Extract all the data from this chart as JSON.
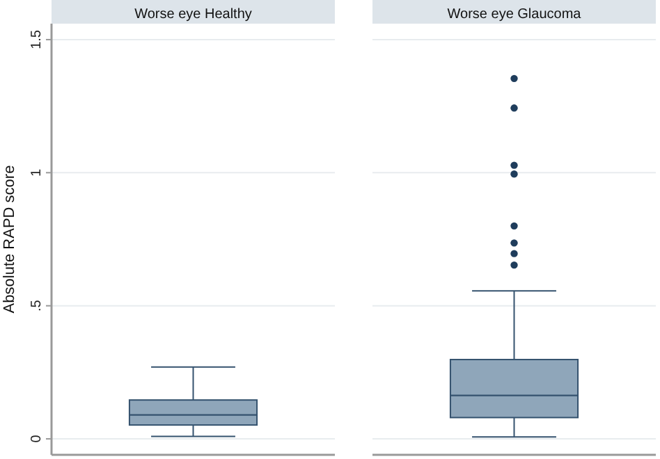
{
  "chart_data": {
    "type": "box",
    "ylabel": "Absolute RAPD score",
    "categories": [
      "Worse eye Healthy",
      "Worse eye Glaucoma"
    ],
    "color": "#8fa6ba",
    "ylim": [
      -0.06,
      1.56
    ],
    "yticks": [
      0,
      {
        "value": 0.5,
        "label": ".5"
      },
      1,
      1.5
    ],
    "grid": "y",
    "boxes": [
      {
        "low": 0.009,
        "q1": 0.052,
        "median": 0.09,
        "q3": 0.146,
        "high": 0.27
      },
      {
        "low": 0.007,
        "q1": 0.08,
        "median": 0.163,
        "q3": 0.298,
        "high": 0.556,
        "outliers": [
          1.354,
          1.243,
          1.028,
          0.995,
          0.8,
          0.736,
          0.696,
          0.653
        ]
      }
    ]
  }
}
